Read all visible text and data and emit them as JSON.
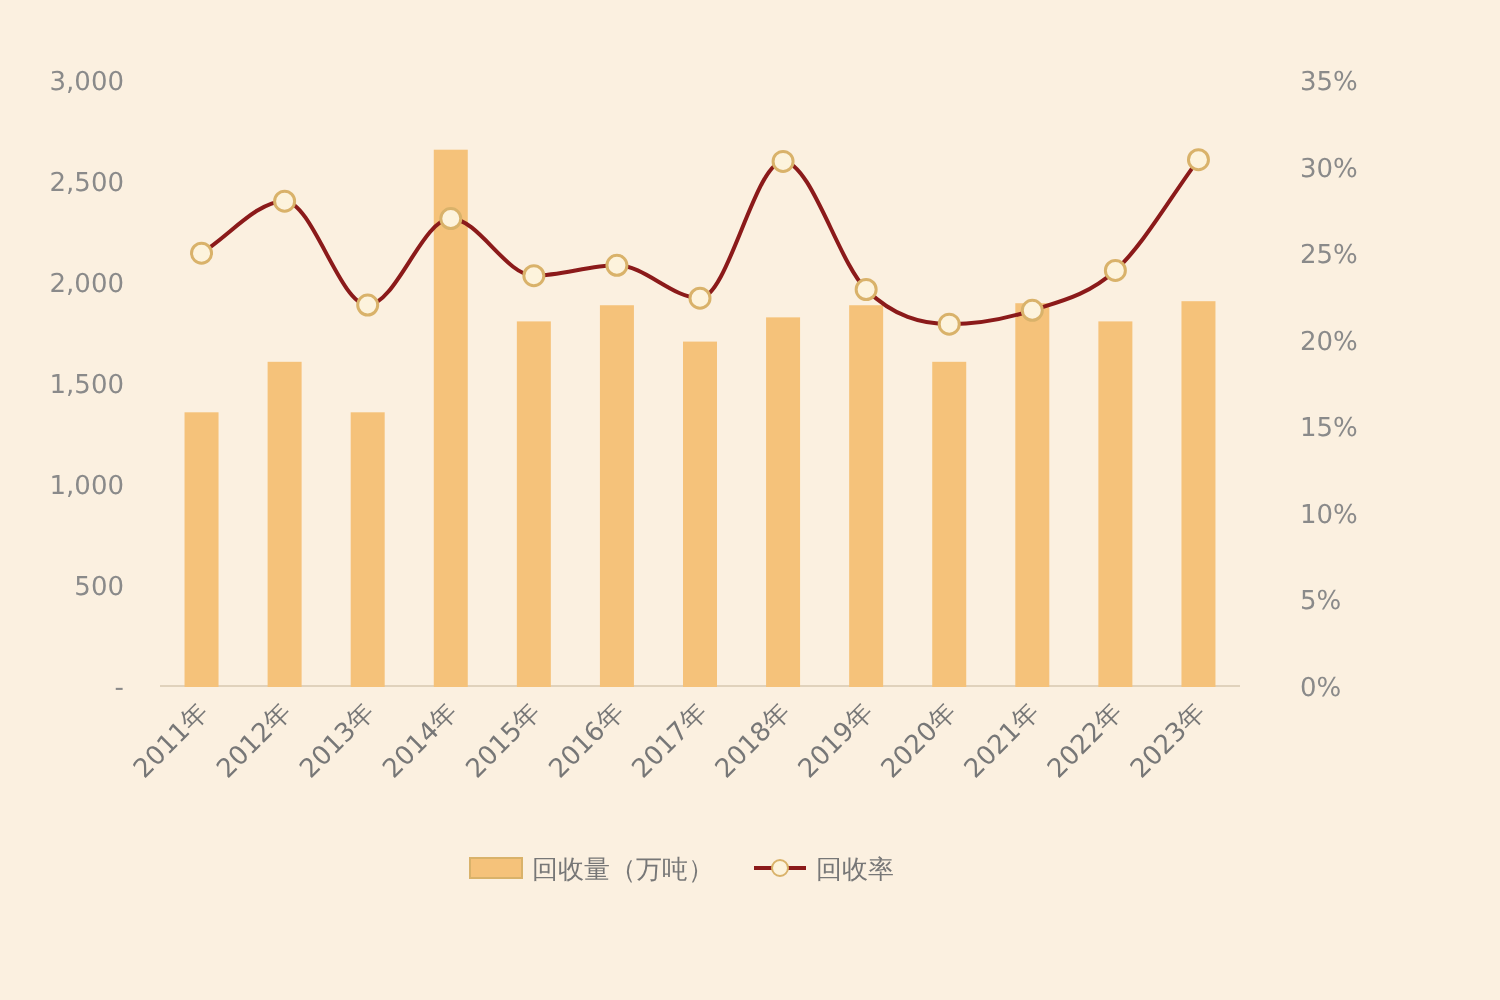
{
  "chart_data": {
    "type": "bar",
    "categories": [
      "2011年",
      "2012年",
      "2013年",
      "2014年",
      "2015年",
      "2016年",
      "2017年",
      "2018年",
      "2019年",
      "2020年",
      "2021年",
      "2022年",
      "2023年"
    ],
    "series": [
      {
        "name": "回收量（万吨）",
        "color": "#f5c27a",
        "values": [
          1350,
          1600,
          1350,
          2650,
          1800,
          1880,
          1700,
          1820,
          1880,
          1600,
          1890,
          1800,
          1900
        ]
      },
      {
        "name": "回收率",
        "type": "line",
        "axis": "y2",
        "color": "#8b1a1a",
        "marker": "circle",
        "values": [
          25,
          28,
          22,
          27,
          23.7,
          24.3,
          22.4,
          30.3,
          22.9,
          20.9,
          21.7,
          24,
          30.4
        ]
      }
    ],
    "ylim": [
      0,
      3000
    ],
    "yticks": [
      {
        "value": 0,
        "label": "-"
      },
      {
        "value": 500,
        "label": "500"
      },
      {
        "value": 1000,
        "label": "1,000"
      },
      {
        "value": 1500,
        "label": "1,500"
      },
      {
        "value": 2000,
        "label": "2,000"
      },
      {
        "value": 2500,
        "label": "2,500"
      },
      {
        "value": 3000,
        "label": "3,000"
      }
    ],
    "y2lim": [
      0,
      35
    ],
    "y2ticks": [
      {
        "value": 0,
        "label": "0%"
      },
      {
        "value": 5,
        "label": "5%"
      },
      {
        "value": 10,
        "label": "10%"
      },
      {
        "value": 15,
        "label": "15%"
      },
      {
        "value": 20,
        "label": "20%"
      },
      {
        "value": 25,
        "label": "25%"
      },
      {
        "value": 30,
        "label": "30%"
      },
      {
        "value": 35,
        "label": "35%"
      }
    ],
    "grid": false,
    "legend": "bottom"
  }
}
